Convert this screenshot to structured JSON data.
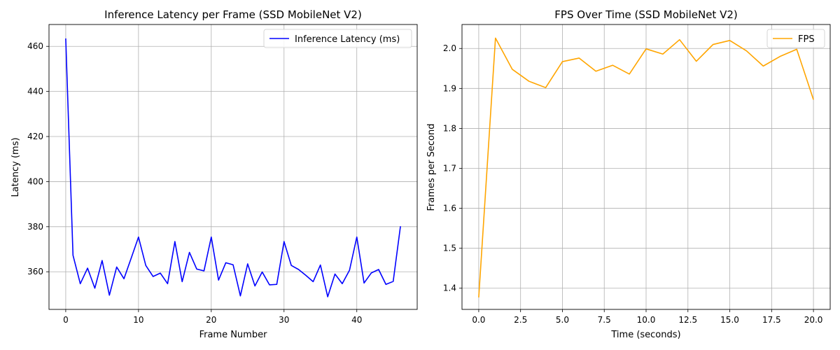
{
  "chart_data": [
    {
      "type": "line",
      "title": "Inference Latency per Frame (SSD MobileNet V2)",
      "xlabel": "Frame Number",
      "ylabel": "Latency (ms)",
      "xlim": [
        -2.3,
        48.3
      ],
      "ylim": [
        343.3,
        469.7
      ],
      "xticks": [
        0,
        10,
        20,
        30,
        40
      ],
      "yticks": [
        360,
        380,
        400,
        420,
        440,
        460
      ],
      "tick_format": "int",
      "grid": true,
      "legend_position": "top-right",
      "series": [
        {
          "name": "Inference Latency (ms)",
          "color": "#0000ff",
          "x": [
            0,
            1,
            2,
            3,
            4,
            5,
            6,
            7,
            8,
            9,
            10,
            11,
            12,
            13,
            14,
            15,
            16,
            17,
            18,
            19,
            20,
            21,
            22,
            23,
            24,
            25,
            26,
            27,
            28,
            29,
            30,
            31,
            32,
            33,
            34,
            35,
            36,
            37,
            38,
            39,
            40,
            41,
            42,
            43,
            44,
            45,
            46
          ],
          "values": [
            463.5,
            367.3,
            354.7,
            361.6,
            352.7,
            365.0,
            349.6,
            362.1,
            356.9,
            366.1,
            375.4,
            362.8,
            357.9,
            359.4,
            354.7,
            373.4,
            355.6,
            368.6,
            361.2,
            360.4,
            375.4,
            356.3,
            364.0,
            363.1,
            349.3,
            363.5,
            353.7,
            359.9,
            354.2,
            354.4,
            373.4,
            362.8,
            361.0,
            358.4,
            355.6,
            363.0,
            348.9,
            359.0,
            354.7,
            360.7,
            375.4,
            355.0,
            359.5,
            361.0,
            354.4,
            355.7,
            380.2
          ]
        }
      ]
    },
    {
      "type": "line",
      "title": "FPS Over Time (SSD MobileNet V2)",
      "xlabel": "Time (seconds)",
      "ylabel": "Frames per Second",
      "xlim": [
        -1.0,
        21.0
      ],
      "ylim": [
        1.347,
        2.06
      ],
      "xticks": [
        0.0,
        2.5,
        5.0,
        7.5,
        10.0,
        12.5,
        15.0,
        17.5,
        20.0
      ],
      "yticks": [
        1.4,
        1.5,
        1.6,
        1.7,
        1.8,
        1.9,
        2.0
      ],
      "tick_format": "1dp",
      "grid": true,
      "legend_position": "top-right",
      "series": [
        {
          "name": "FPS",
          "color": "#ffa500",
          "x": [
            0,
            1,
            2,
            3,
            4,
            5,
            6,
            7,
            8,
            9,
            10,
            11,
            12,
            13,
            14,
            15,
            16,
            17,
            18,
            19,
            20
          ],
          "values": [
            1.377,
            2.026,
            1.948,
            1.918,
            1.902,
            1.967,
            1.976,
            1.943,
            1.958,
            1.936,
            1.999,
            1.986,
            2.022,
            1.968,
            2.01,
            2.02,
            1.994,
            1.956,
            1.98,
            1.998,
            1.872
          ]
        }
      ]
    }
  ]
}
